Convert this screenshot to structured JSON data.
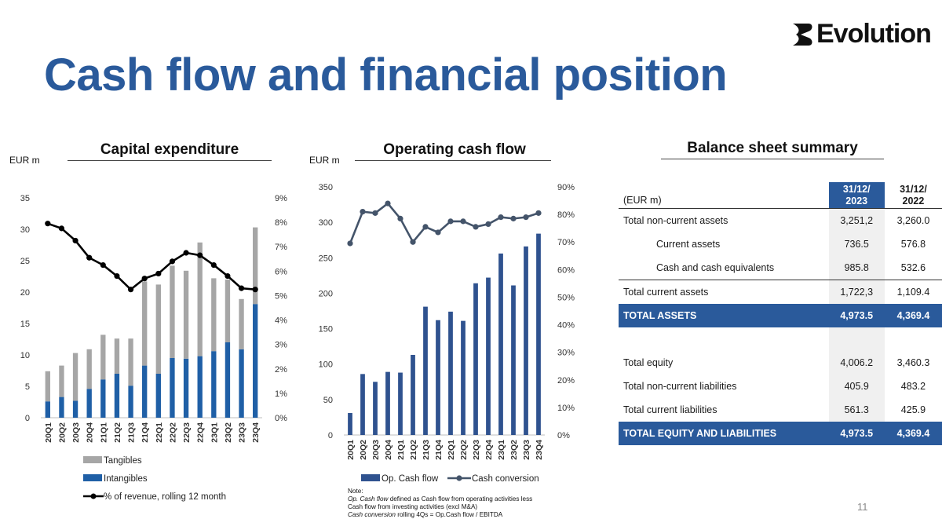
{
  "header": {
    "title": "Cash flow and financial position",
    "logo_text": "Evolution",
    "page_number": "11"
  },
  "capex": {
    "section_title": "Capital expenditure",
    "unit": "EUR m",
    "legend": [
      "Tangibles",
      "Intangibles",
      "% of revenue, rolling 12 month"
    ]
  },
  "opcf": {
    "section_title": "Operating cash flow",
    "unit": "EUR m",
    "legend": [
      "Op. Cash flow",
      "Cash conversion"
    ],
    "note_label": "Note:",
    "note_line1_em": "Op. Cash flow",
    "note_line1": " defined as Cash flow from operating activities less",
    "note_line2": "Cash flow from investing activities (excl M&A)",
    "note_line3_em": "Cash conversion",
    "note_line3": " rolling 4Qs = Op.Cash flow / EBITDA"
  },
  "balance": {
    "section_title": "Balance sheet summary",
    "col_label": "(EUR m)",
    "col_2023_line1": "31/12/",
    "col_2023_line2": "2023",
    "col_2022_line1": "31/12/",
    "col_2022_line2": "2022",
    "rows": [
      {
        "label": "Total non-current assets",
        "v2023": "3,251,2",
        "v2022": "3,260.0"
      },
      {
        "label": "Current assets",
        "v2023": "736.5",
        "v2022": "576.8"
      },
      {
        "label": "Cash and cash equivalents",
        "v2023": "985.8",
        "v2022": "532.6"
      },
      {
        "label": "Total current assets",
        "v2023": "1,722,3",
        "v2022": "1,109.4"
      },
      {
        "label": "TOTAL ASSETS",
        "v2023": "4,973.5",
        "v2022": "4,369.4"
      },
      {
        "label": "Total equity",
        "v2023": "4,006.2",
        "v2022": "3,460.3"
      },
      {
        "label": "Total non-current liabilities",
        "v2023": "405.9",
        "v2022": "483.2"
      },
      {
        "label": "Total current liabilities",
        "v2023": "561.3",
        "v2022": "425.9"
      },
      {
        "label": "TOTAL EQUITY AND LIABILITIES",
        "v2023": "4,973.5",
        "v2022": "4,369.4"
      }
    ]
  },
  "colors": {
    "brand_blue": "#2a5a9b",
    "tangibles": "#a6a6a6",
    "intangibles": "#1f5fa6",
    "capex_line": "#000000",
    "opcf_bar": "#2f528f",
    "conversion_line": "#44546a"
  },
  "chart_data": [
    {
      "type": "bar",
      "stacked": true,
      "title": "Capital expenditure",
      "ylabel": "EUR m",
      "categories": [
        "20Q1",
        "20Q2",
        "20Q3",
        "20Q4",
        "21Q1",
        "21Q2",
        "21Q3",
        "21Q4",
        "22Q1",
        "22Q2",
        "22Q3",
        "22Q4",
        "23Q1",
        "23Q2",
        "23Q3",
        "23Q4"
      ],
      "ylim": [
        0,
        35
      ],
      "yticks": [
        "0",
        "5",
        "10",
        "15",
        "20",
        "25",
        "30",
        "35"
      ],
      "y2lim": [
        0,
        9
      ],
      "y2ticks": [
        "0%",
        "1%",
        "2%",
        "3%",
        "4%",
        "5%",
        "6%",
        "7%",
        "8%",
        "9%"
      ],
      "series": [
        {
          "name": "Intangibles",
          "axis": "left",
          "values": [
            2.6,
            3.3,
            2.7,
            4.6,
            6.1,
            7.0,
            5.1,
            8.3,
            7.0,
            9.5,
            9.4,
            9.8,
            10.6,
            12.0,
            10.9,
            18.1
          ]
        },
        {
          "name": "Tangibles",
          "axis": "left",
          "values": [
            4.8,
            5.0,
            7.6,
            6.3,
            7.1,
            5.6,
            7.5,
            13.4,
            14.2,
            14.7,
            14.0,
            18.1,
            11.6,
            10.0,
            8.0,
            12.2
          ]
        },
        {
          "name": "% of revenue, rolling 12 month",
          "type": "line",
          "axis": "right",
          "values": [
            7.95,
            7.75,
            7.25,
            6.55,
            6.25,
            5.8,
            5.25,
            5.7,
            5.9,
            6.4,
            6.75,
            6.65,
            6.25,
            5.8,
            5.3,
            5.25
          ]
        }
      ]
    },
    {
      "type": "bar",
      "title": "Operating cash flow",
      "ylabel": "EUR m",
      "categories": [
        "20Q1",
        "20Q2",
        "20Q3",
        "20Q4",
        "21Q1",
        "21Q2",
        "21Q3",
        "21Q4",
        "22Q1",
        "22Q2",
        "22Q3",
        "22Q4",
        "23Q1",
        "23Q2",
        "23Q3",
        "23Q4"
      ],
      "ylim": [
        0,
        350
      ],
      "yticks": [
        "0",
        "50",
        "100",
        "150",
        "200",
        "250",
        "300",
        "350"
      ],
      "y2lim": [
        0,
        90
      ],
      "y2ticks": [
        "0%",
        "10%",
        "20%",
        "30%",
        "40%",
        "50%",
        "60%",
        "70%",
        "80%",
        "90%"
      ],
      "series": [
        {
          "name": "Op. Cash flow",
          "axis": "left",
          "values": [
            31,
            86,
            75,
            89,
            88,
            113,
            181,
            162,
            174,
            161,
            214,
            222,
            256,
            211,
            266,
            284
          ]
        },
        {
          "name": "Cash conversion",
          "type": "line",
          "axis": "right",
          "values": [
            69.5,
            81,
            80.5,
            84,
            78.5,
            70,
            75.5,
            73.5,
            77.5,
            77.5,
            75.5,
            76.5,
            79,
            78.5,
            79,
            80.5
          ]
        }
      ]
    }
  ]
}
